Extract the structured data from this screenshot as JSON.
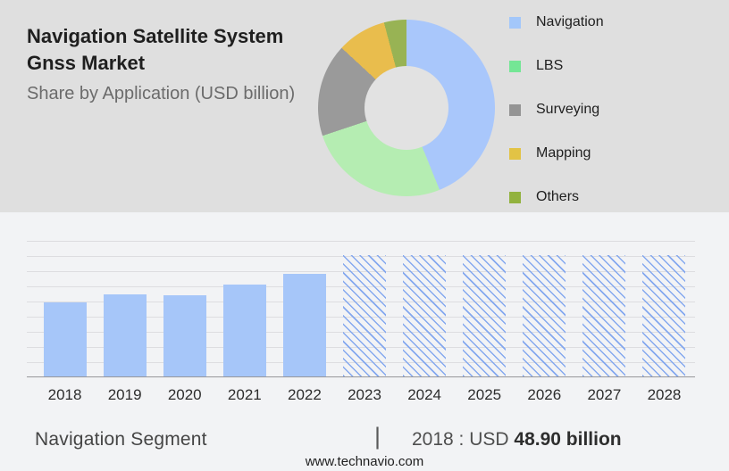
{
  "header": {
    "title_line1": "Navigation Satellite System",
    "title_line2": "Gnss Market",
    "subtitle": "Share by Application (USD billion)"
  },
  "colors": {
    "top_background": "#dfdfdf",
    "bottom_background": "#f2f3f5",
    "donut_hole": "#e2e2e2",
    "solid_bar": "#a6c6f9",
    "hatch_line": "#84a8ef",
    "gridline": "#dddde0",
    "axis_line": "#97979a"
  },
  "chart_data": [
    {
      "type": "pie",
      "subtype": "donut",
      "title": "Share by Application (USD billion)",
      "labels": [
        "Navigation",
        "LBS",
        "Surveying",
        "Mapping",
        "Others"
      ],
      "shares_pct": [
        43.9,
        26.0,
        17.0,
        9.0,
        4.1
      ],
      "colors": [
        "#a9c7fb",
        "#b5edb2",
        "#9a9a9a",
        "#e9bd4d",
        "#98b354"
      ],
      "legend_colors": [
        "#a3c7fa",
        "#74e695",
        "#949494",
        "#e2c345",
        "#92b23e"
      ],
      "legend_position": "right"
    },
    {
      "type": "bar",
      "categories": [
        "2018",
        "2019",
        "2020",
        "2021",
        "2022",
        "2023",
        "2024",
        "2025",
        "2026",
        "2027",
        "2028"
      ],
      "values": [
        48.9,
        54.2,
        53.6,
        60.7,
        67.7,
        80.1,
        80.1,
        80.1,
        80.1,
        80.1,
        80.1
      ],
      "unit": "USD billion",
      "anchor_label": "2018 : USD 48.90 billion",
      "forecast_from": "2023",
      "forecast_style": "hatched",
      "values_estimated_from_pixels": true,
      "bar_color": "#a6c6f9",
      "hatch_color": "#84a8ef",
      "ylim": [
        0,
        90
      ],
      "grid": true,
      "xlabel": "",
      "ylabel": ""
    }
  ],
  "footer": {
    "segment_label": "Navigation Segment",
    "divider": "|",
    "value_prefix": "2018 : USD",
    "value_bold": "48.90 billion",
    "website": "www.technavio.com"
  }
}
